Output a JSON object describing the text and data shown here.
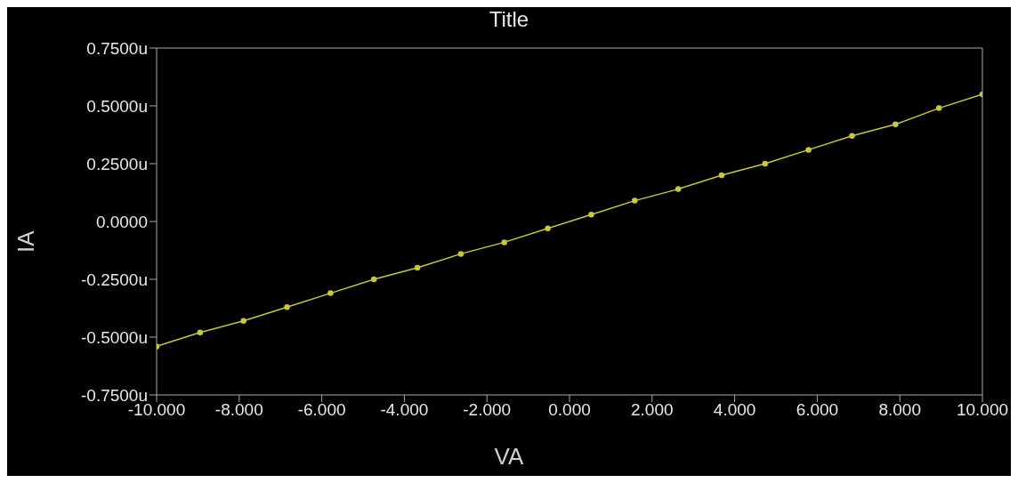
{
  "chart_data": {
    "type": "line",
    "title": "Title",
    "xlabel": "VA",
    "ylabel": "IA",
    "x": [
      -10,
      -8.947,
      -7.895,
      -6.842,
      -5.789,
      -4.737,
      -3.684,
      -2.632,
      -1.579,
      -0.526,
      0.526,
      1.579,
      2.632,
      3.684,
      4.737,
      5.789,
      6.842,
      7.895,
      8.947,
      10
    ],
    "series": [
      {
        "color": "#c8c83a",
        "values": [
          -0.54,
          -0.48,
          -0.43,
          -0.37,
          -0.31,
          -0.25,
          -0.2,
          -0.14,
          -0.09,
          -0.03,
          0.03,
          0.09,
          0.14,
          0.2,
          0.25,
          0.31,
          0.37,
          0.42,
          0.49,
          0.55
        ]
      }
    ],
    "xlim": [
      -10,
      10
    ],
    "xticks": [
      {
        "value": -10,
        "label": "-10.000"
      },
      {
        "value": -8,
        "label": "-8.000"
      },
      {
        "value": -6,
        "label": "-6.000"
      },
      {
        "value": -4,
        "label": "-4.000"
      },
      {
        "value": -2,
        "label": "-2.000"
      },
      {
        "value": 0,
        "label": "0.000"
      },
      {
        "value": 2,
        "label": "2.000"
      },
      {
        "value": 4,
        "label": "4.000"
      },
      {
        "value": 6,
        "label": "6.000"
      },
      {
        "value": 8,
        "label": "8.000"
      },
      {
        "value": 10,
        "label": "10.000"
      }
    ],
    "ylim": [
      -0.75,
      0.75
    ],
    "yticks": [
      {
        "value": -0.75,
        "label": "-0.7500u"
      },
      {
        "value": -0.5,
        "label": "-0.5000u"
      },
      {
        "value": -0.25,
        "label": "-0.2500u"
      },
      {
        "value": 0,
        "label": "0.0000"
      },
      {
        "value": 0.25,
        "label": "0.2500u"
      },
      {
        "value": 0.5,
        "label": "0.5000u"
      },
      {
        "value": 0.75,
        "label": "0.7500u"
      }
    ],
    "marker": "circle",
    "line_style": "solid",
    "grid": false,
    "legend": false
  }
}
